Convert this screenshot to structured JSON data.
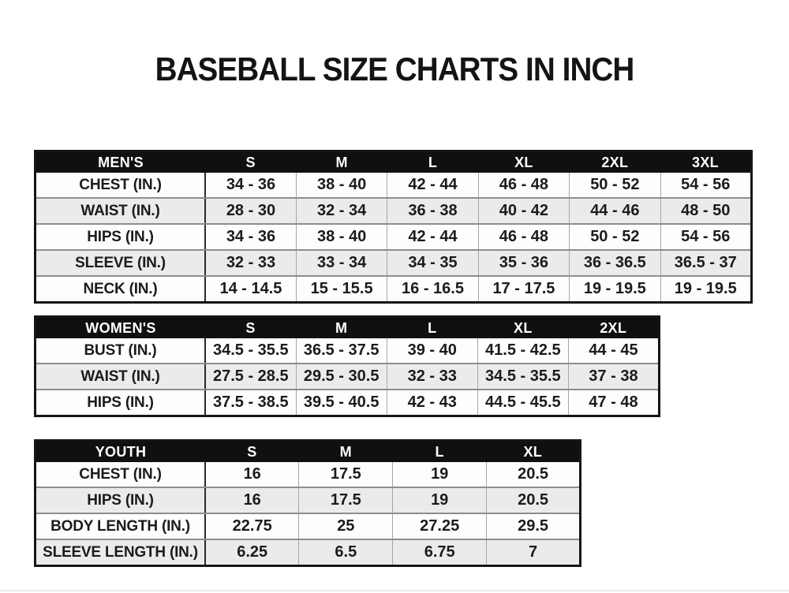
{
  "title": "BASEBALL SIZE CHARTS IN INCH",
  "unit": "IN.",
  "colors": {
    "page_bg": "#ffffff",
    "header_bg": "#101010",
    "row_bg": "#fdfdfd",
    "row_alt_bg": "#ebebeb",
    "border_dark": "#161616",
    "border_light": "#a6a6a6",
    "title_color": "#141414"
  },
  "tables": [
    {
      "id": "mens",
      "header": [
        "MEN'S",
        "S",
        "M",
        "L",
        "XL",
        "2XL",
        "3XL"
      ],
      "rows": [
        {
          "label": "CHEST (IN.)",
          "values": [
            "34 - 36",
            "38 - 40",
            "42 - 44",
            "46 - 48",
            "50 - 52",
            "54 - 56"
          ]
        },
        {
          "label": "WAIST (IN.)",
          "values": [
            "28 - 30",
            "32 - 34",
            "36 - 38",
            "40 - 42",
            "44 - 46",
            "48 - 50"
          ]
        },
        {
          "label": "HIPS (IN.)",
          "values": [
            "34 - 36",
            "38 - 40",
            "42 - 44",
            "46 - 48",
            "50 - 52",
            "54 - 56"
          ]
        },
        {
          "label": "SLEEVE (IN.)",
          "values": [
            "32 - 33",
            "33 - 34",
            "34 - 35",
            "35 - 36",
            "36 - 36.5",
            "36.5 - 37"
          ]
        },
        {
          "label": "NECK (IN.)",
          "values": [
            "14 - 14.5",
            "15 - 15.5",
            "16 - 16.5",
            "17 - 17.5",
            "19 - 19.5",
            "19 - 19.5"
          ]
        }
      ]
    },
    {
      "id": "womens",
      "header": [
        "WOMEN'S",
        "S",
        "M",
        "L",
        "XL",
        "2XL"
      ],
      "rows": [
        {
          "label": "BUST (IN.)",
          "values": [
            "34.5 - 35.5",
            "36.5 - 37.5",
            "39 - 40",
            "41.5 - 42.5",
            "44 - 45"
          ]
        },
        {
          "label": "WAIST (IN.)",
          "values": [
            "27.5 - 28.5",
            "29.5 - 30.5",
            "32 - 33",
            "34.5 - 35.5",
            "37 - 38"
          ]
        },
        {
          "label": "HIPS (IN.)",
          "values": [
            "37.5 - 38.5",
            "39.5 - 40.5",
            "42 - 43",
            "44.5 - 45.5",
            "47 - 48"
          ]
        }
      ]
    },
    {
      "id": "youth",
      "header": [
        "YOUTH",
        "S",
        "M",
        "L",
        "XL"
      ],
      "rows": [
        {
          "label": "CHEST (IN.)",
          "values": [
            "16",
            "17.5",
            "19",
            "20.5"
          ]
        },
        {
          "label": "HIPS (IN.)",
          "values": [
            "16",
            "17.5",
            "19",
            "20.5"
          ]
        },
        {
          "label": "BODY LENGTH (IN.)",
          "values": [
            "22.75",
            "25",
            "27.25",
            "29.5"
          ]
        },
        {
          "label": "SLEEVE LENGTH (IN.)",
          "values": [
            "6.25",
            "6.5",
            "6.75",
            "7"
          ]
        }
      ]
    }
  ]
}
